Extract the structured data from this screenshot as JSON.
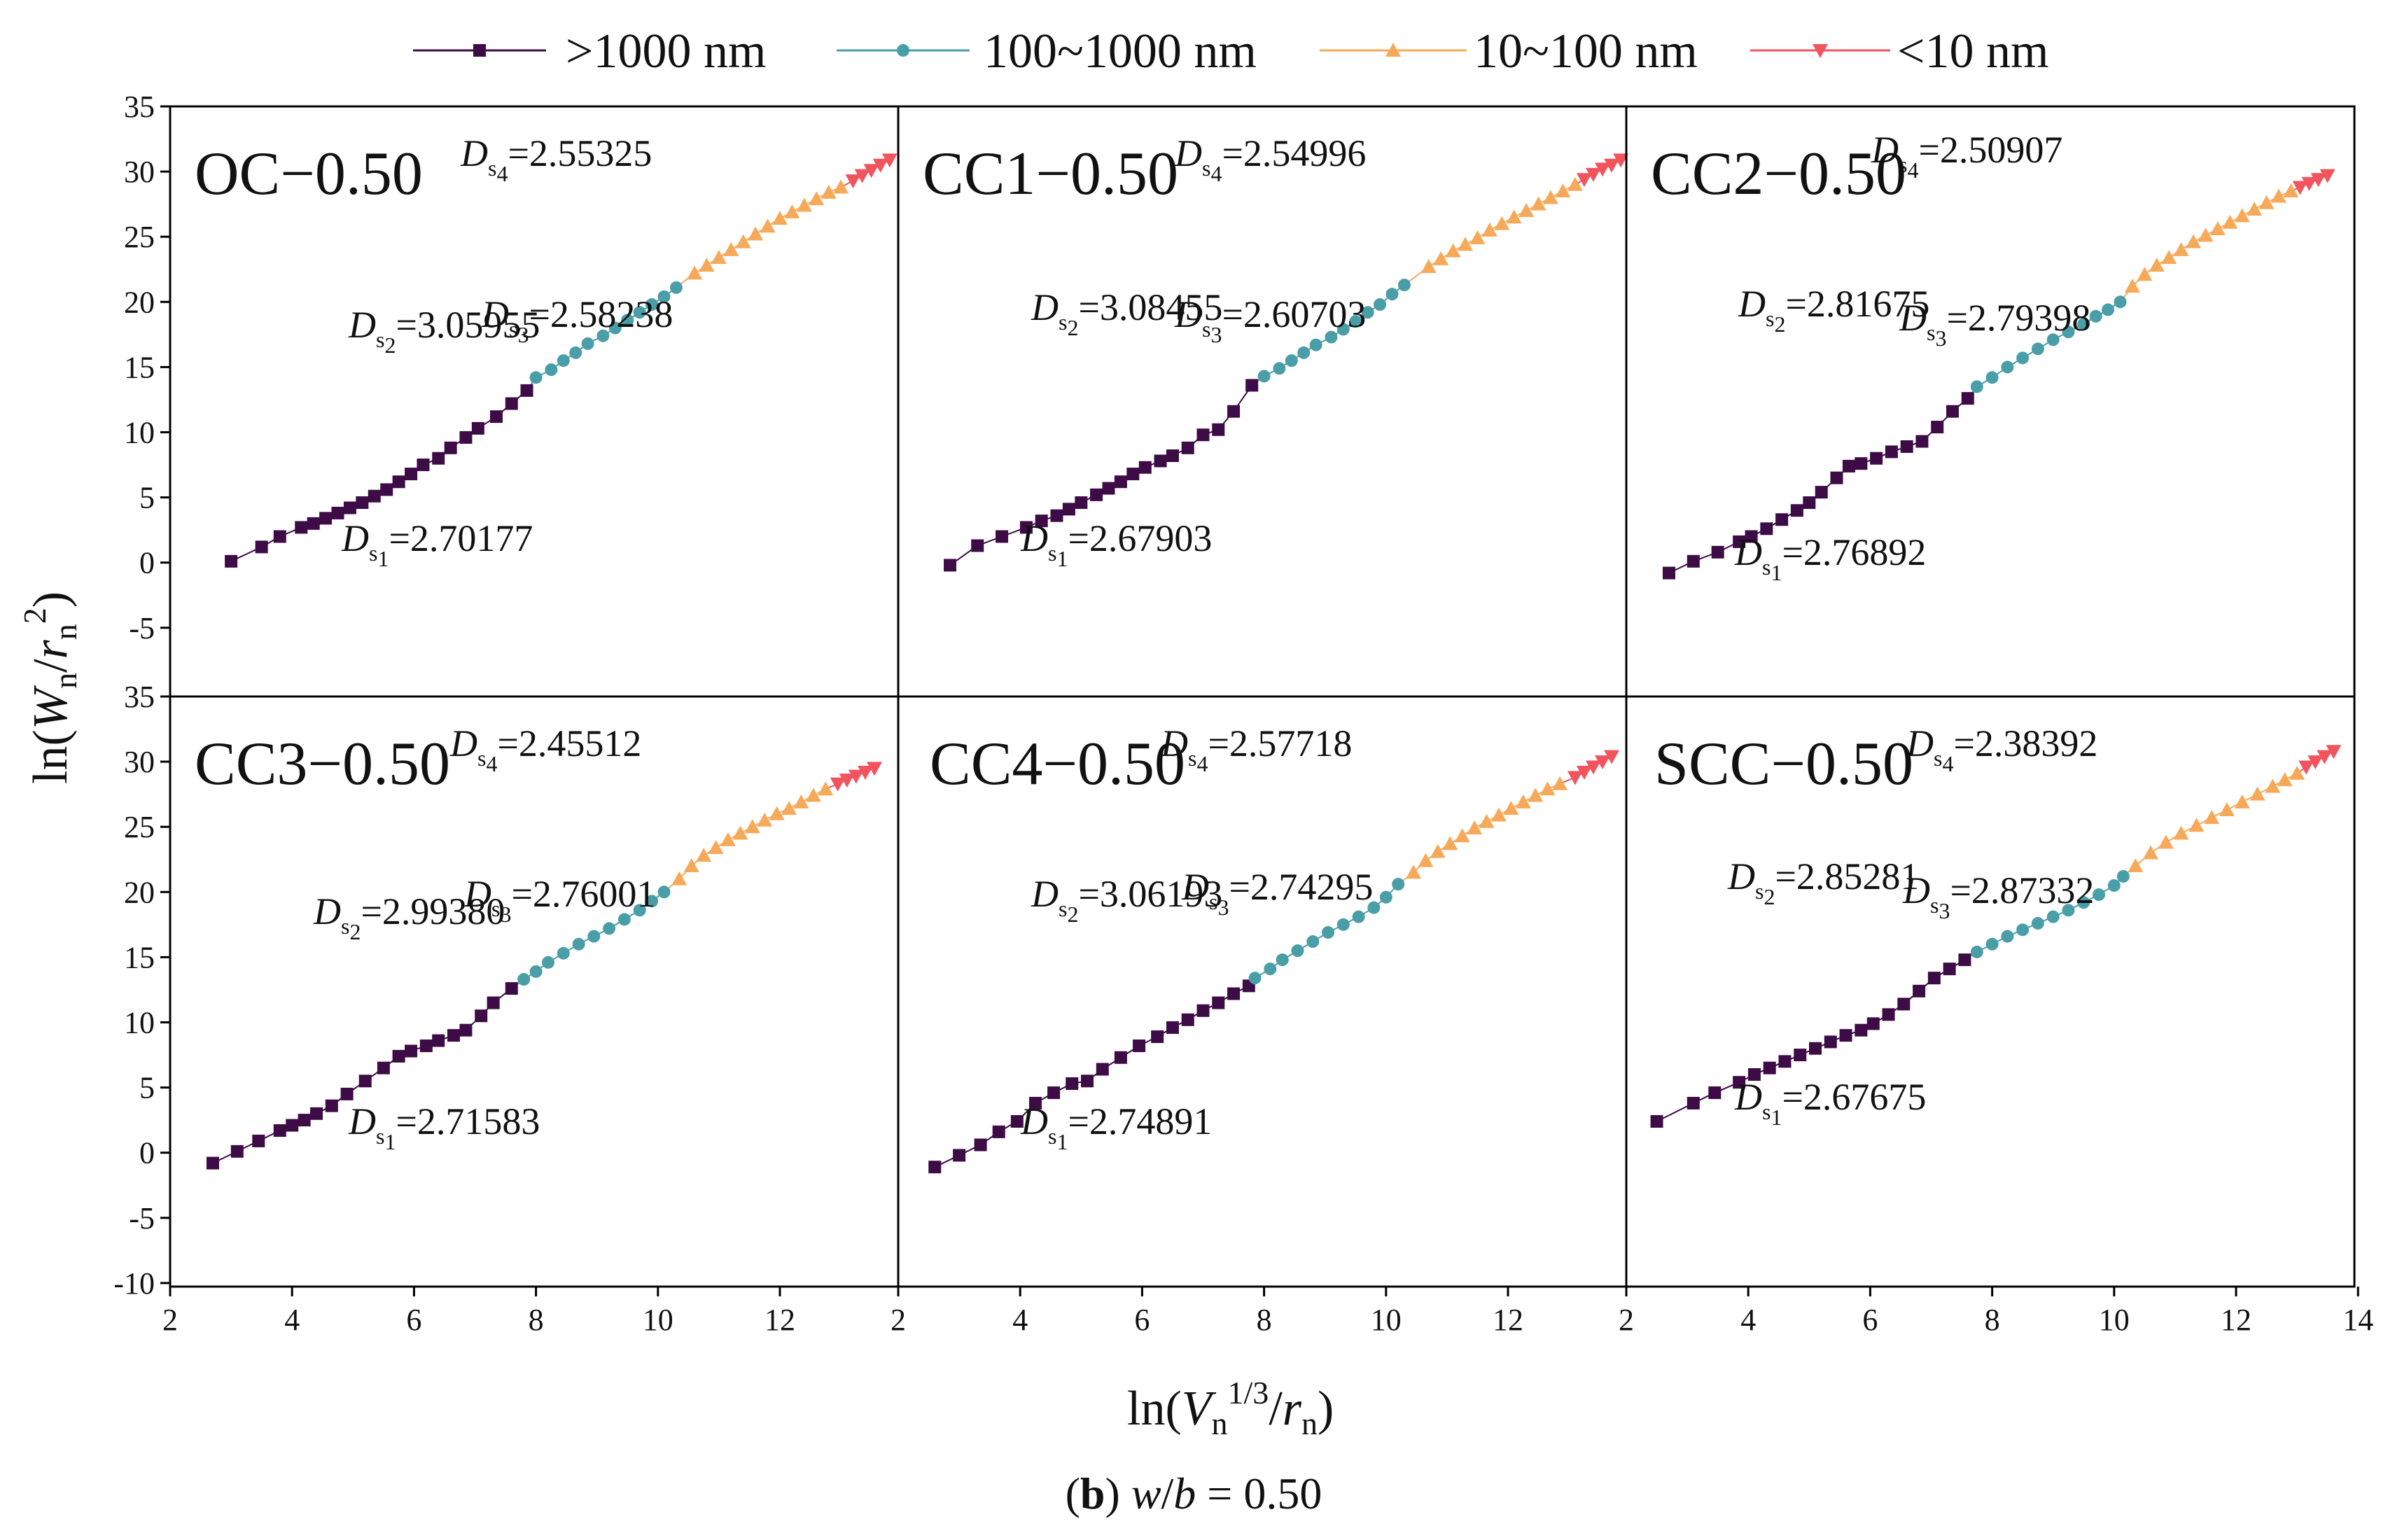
{
  "chart_data": {
    "type": "scatter",
    "figure_caption": {
      "letter": "b",
      "prefix": "(",
      "suffix": ")",
      "condition": "w/b = 0.50"
    },
    "xlabel": "ln(Vn^(1/3)/rn)",
    "ylabel": "ln(Wn/rn^2)",
    "x_ticks": [
      "2",
      "4",
      "6",
      "8",
      "10",
      "12",
      "2",
      "4",
      "6",
      "8",
      "10",
      "12",
      "2",
      "4",
      "6",
      "8",
      "10",
      "12",
      "14"
    ],
    "y_ticks_top": [
      "35",
      "30",
      "25",
      "20",
      "15",
      "10",
      "5",
      "0",
      "-5"
    ],
    "y_ticks_bottom": [
      "35",
      "30",
      "25",
      "20",
      "15",
      "10",
      "5",
      "0",
      "-5",
      "-10"
    ],
    "xlim": [
      2,
      14
    ],
    "ylim_top": [
      -10,
      35
    ],
    "ylim_bottom": [
      -10,
      35
    ],
    "legend": {
      "position": "top",
      "entries": [
        {
          "label": ">1000 nm",
          "color": "#3d0b45",
          "marker": "square"
        },
        {
          "label": "100~1000 nm",
          "color": "#4a9ea8",
          "marker": "circle"
        },
        {
          "label": "10~100 nm",
          "color": "#f7a95a",
          "marker": "triangle-up"
        },
        {
          "label": "<10 nm",
          "color": "#f2545e",
          "marker": "triangle-down"
        }
      ]
    },
    "panels": [
      {
        "title": "OC−0.50",
        "labels": [
          {
            "sub": "1",
            "value": "=2.70177"
          },
          {
            "sub": "2",
            "value": "=3.05955"
          },
          {
            "sub": "3",
            "value": "=2.58238"
          },
          {
            "sub": "4",
            "value": "=2.55325"
          }
        ],
        "segments": [
          {
            "name": ">1000 nm",
            "x": [
              3.0,
              3.5,
              3.8,
              4.15,
              4.35,
              4.55,
              4.75,
              4.95,
              5.15,
              5.35,
              5.55,
              5.75,
              5.95,
              6.15,
              6.4,
              6.6,
              6.85,
              7.05,
              7.35,
              7.6,
              7.85
            ],
            "y": [
              0.1,
              1.2,
              2.0,
              2.7,
              3.0,
              3.4,
              3.8,
              4.2,
              4.6,
              5.1,
              5.6,
              6.2,
              6.8,
              7.5,
              8.0,
              8.8,
              9.6,
              10.3,
              11.2,
              12.2,
              13.2
            ]
          },
          {
            "name": "100~1000 nm",
            "x": [
              8.0,
              8.25,
              8.45,
              8.65,
              8.85,
              9.1,
              9.3,
              9.5,
              9.7,
              9.9,
              10.1,
              10.3
            ],
            "y": [
              14.2,
              14.8,
              15.5,
              16.1,
              16.8,
              17.4,
              18.0,
              18.6,
              19.2,
              19.8,
              20.4,
              21.1
            ]
          },
          {
            "name": "10~100 nm",
            "x": [
              10.6,
              10.8,
              11.0,
              11.2,
              11.4,
              11.6,
              11.8,
              12.0,
              12.2,
              12.4,
              12.6,
              12.8,
              13.0
            ],
            "y": [
              22.2,
              22.8,
              23.4,
              24.0,
              24.6,
              25.2,
              25.8,
              26.4,
              26.9,
              27.4,
              27.9,
              28.4,
              28.8
            ]
          },
          {
            "name": "<10 nm",
            "x": [
              13.2,
              13.35,
              13.5,
              13.65,
              13.8
            ],
            "y": [
              29.3,
              29.7,
              30.1,
              30.5,
              30.9
            ]
          }
        ]
      },
      {
        "title": "CC1−0.50",
        "labels": [
          {
            "sub": "1",
            "value": "=2.67903"
          },
          {
            "sub": "2",
            "value": "=3.08455"
          },
          {
            "sub": "3",
            "value": "=2.60703"
          },
          {
            "sub": "4",
            "value": "=2.54996"
          }
        ],
        "segments": [
          {
            "name": ">1000 nm",
            "x": [
              2.85,
              3.3,
              3.7,
              4.1,
              4.35,
              4.6,
              4.8,
              5.0,
              5.25,
              5.45,
              5.65,
              5.85,
              6.05,
              6.3,
              6.5,
              6.75,
              7.0,
              7.25,
              7.5,
              7.8
            ],
            "y": [
              -0.2,
              1.3,
              2.0,
              2.7,
              3.2,
              3.6,
              4.1,
              4.6,
              5.2,
              5.7,
              6.2,
              6.8,
              7.3,
              7.8,
              8.2,
              8.8,
              9.8,
              10.2,
              11.6,
              13.6
            ]
          },
          {
            "name": "100~1000 nm",
            "x": [
              8.0,
              8.25,
              8.45,
              8.65,
              8.85,
              9.1,
              9.3,
              9.5,
              9.7,
              9.9,
              10.1,
              10.3
            ],
            "y": [
              14.3,
              14.9,
              15.5,
              16.1,
              16.7,
              17.3,
              17.9,
              18.5,
              19.2,
              19.8,
              20.6,
              21.3
            ]
          },
          {
            "name": "10~100 nm",
            "x": [
              10.7,
              10.9,
              11.1,
              11.3,
              11.5,
              11.7,
              11.9,
              12.1,
              12.3,
              12.5,
              12.7,
              12.9,
              13.1
            ],
            "y": [
              22.7,
              23.3,
              23.9,
              24.4,
              24.9,
              25.5,
              26.0,
              26.5,
              27.0,
              27.5,
              28.0,
              28.5,
              29.0
            ]
          },
          {
            "name": "<10 nm",
            "x": [
              13.25,
              13.4,
              13.55,
              13.7,
              13.85
            ],
            "y": [
              29.4,
              29.8,
              30.2,
              30.5,
              30.9
            ]
          }
        ]
      },
      {
        "title": "CC2−0.50",
        "labels": [
          {
            "sub": "1",
            "value": "=2.76892"
          },
          {
            "sub": "2",
            "value": "=2.81675"
          },
          {
            "sub": "3",
            "value": "=2.79398"
          },
          {
            "sub": "4",
            "value": "=2.50907"
          }
        ],
        "segments": [
          {
            "name": ">1000 nm",
            "x": [
              2.7,
              3.1,
              3.5,
              3.85,
              4.05,
              4.3,
              4.55,
              4.8,
              5.0,
              5.2,
              5.45,
              5.65,
              5.85,
              6.1,
              6.35,
              6.6,
              6.85,
              7.1,
              7.35,
              7.6
            ],
            "y": [
              -0.8,
              0.1,
              0.8,
              1.6,
              2.0,
              2.6,
              3.3,
              4.0,
              4.6,
              5.4,
              6.5,
              7.4,
              7.6,
              8.0,
              8.5,
              8.9,
              9.3,
              10.4,
              11.6,
              12.6
            ]
          },
          {
            "name": "100~1000 nm",
            "x": [
              7.75,
              8.0,
              8.25,
              8.5,
              8.75,
              9.0,
              9.25,
              9.5,
              9.7,
              9.9,
              10.1
            ],
            "y": [
              13.5,
              14.2,
              15.0,
              15.7,
              16.4,
              17.1,
              17.7,
              18.3,
              18.9,
              19.4,
              20.0
            ]
          },
          {
            "name": "10~100 nm",
            "x": [
              10.3,
              10.5,
              10.7,
              10.9,
              11.1,
              11.3,
              11.5,
              11.7,
              11.9,
              12.1,
              12.3,
              12.5,
              12.7,
              12.9
            ],
            "y": [
              21.2,
              22.1,
              22.8,
              23.4,
              24.0,
              24.6,
              25.1,
              25.6,
              26.1,
              26.6,
              27.1,
              27.6,
              28.1,
              28.5
            ]
          },
          {
            "name": "<10 nm",
            "x": [
              13.05,
              13.2,
              13.35,
              13.5
            ],
            "y": [
              28.8,
              29.1,
              29.4,
              29.7
            ]
          }
        ]
      },
      {
        "title": "CC3−0.50",
        "labels": [
          {
            "sub": "1",
            "value": "=2.71583"
          },
          {
            "sub": "2",
            "value": "=2.99380"
          },
          {
            "sub": "3",
            "value": "=2.76001"
          },
          {
            "sub": "4",
            "value": "=2.45512"
          }
        ],
        "segments": [
          {
            "name": ">1000 nm",
            "x": [
              2.7,
              3.1,
              3.45,
              3.8,
              4.0,
              4.2,
              4.4,
              4.65,
              4.9,
              5.2,
              5.5,
              5.75,
              5.95,
              6.2,
              6.4,
              6.65,
              6.85,
              7.1,
              7.3,
              7.6
            ],
            "y": [
              -0.8,
              0.1,
              0.9,
              1.7,
              2.1,
              2.5,
              3.0,
              3.6,
              4.5,
              5.5,
              6.5,
              7.4,
              7.8,
              8.2,
              8.6,
              9.0,
              9.4,
              10.5,
              11.5,
              12.6
            ]
          },
          {
            "name": "100~1000 nm",
            "x": [
              7.8,
              8.0,
              8.2,
              8.45,
              8.7,
              8.95,
              9.2,
              9.45,
              9.7,
              9.9,
              10.1
            ],
            "y": [
              13.3,
              13.9,
              14.6,
              15.3,
              16.0,
              16.6,
              17.2,
              17.9,
              18.6,
              19.3,
              20.0
            ]
          },
          {
            "name": "10~100 nm",
            "x": [
              10.35,
              10.55,
              10.75,
              10.95,
              11.15,
              11.35,
              11.55,
              11.75,
              11.95,
              12.15,
              12.35,
              12.55,
              12.75
            ],
            "y": [
              21.0,
              22.0,
              22.8,
              23.4,
              24.0,
              24.5,
              25.0,
              25.5,
              26.0,
              26.4,
              26.9,
              27.4,
              27.9
            ]
          },
          {
            "name": "<10 nm",
            "x": [
              12.95,
              13.1,
              13.25,
              13.4,
              13.55
            ],
            "y": [
              28.3,
              28.6,
              28.9,
              29.2,
              29.5
            ]
          }
        ]
      },
      {
        "title": "CC4−0.50",
        "labels": [
          {
            "sub": "1",
            "value": "=2.74891"
          },
          {
            "sub": "2",
            "value": "=3.06193"
          },
          {
            "sub": "3",
            "value": "=2.74295"
          },
          {
            "sub": "4",
            "value": "=2.57718"
          }
        ],
        "segments": [
          {
            "name": ">1000 nm",
            "x": [
              2.6,
              3.0,
              3.35,
              3.65,
              3.95,
              4.25,
              4.55,
              4.85,
              5.1,
              5.35,
              5.65,
              5.95,
              6.25,
              6.5,
              6.75,
              7.0,
              7.25,
              7.5,
              7.75
            ],
            "y": [
              -1.1,
              -0.2,
              0.6,
              1.6,
              2.4,
              3.8,
              4.6,
              5.3,
              5.5,
              6.4,
              7.3,
              8.2,
              8.9,
              9.6,
              10.2,
              10.9,
              11.5,
              12.2,
              12.8
            ]
          },
          {
            "name": "100~1000 nm",
            "x": [
              7.85,
              8.1,
              8.3,
              8.55,
              8.8,
              9.05,
              9.3,
              9.55,
              9.8,
              10.0,
              10.2
            ],
            "y": [
              13.4,
              14.1,
              14.8,
              15.5,
              16.2,
              16.9,
              17.5,
              18.1,
              18.8,
              19.6,
              20.6
            ]
          },
          {
            "name": "10~100 nm",
            "x": [
              10.45,
              10.65,
              10.85,
              11.05,
              11.25,
              11.45,
              11.65,
              11.85,
              12.05,
              12.25,
              12.45,
              12.65,
              12.85
            ],
            "y": [
              21.5,
              22.4,
              23.1,
              23.7,
              24.3,
              24.9,
              25.4,
              25.9,
              26.4,
              26.9,
              27.4,
              27.9,
              28.3
            ]
          },
          {
            "name": "<10 nm",
            "x": [
              13.1,
              13.25,
              13.4,
              13.55,
              13.7
            ],
            "y": [
              28.8,
              29.2,
              29.6,
              30.0,
              30.4
            ]
          }
        ]
      },
      {
        "title": "SCC−0.50",
        "labels": [
          {
            "sub": "1",
            "value": "=2.67675"
          },
          {
            "sub": "2",
            "value": "=2.85281"
          },
          {
            "sub": "3",
            "value": "=2.87332"
          },
          {
            "sub": "4",
            "value": "=2.38392"
          }
        ],
        "segments": [
          {
            "name": ">1000 nm",
            "x": [
              2.5,
              3.1,
              3.45,
              3.85,
              4.1,
              4.35,
              4.6,
              4.85,
              5.1,
              5.35,
              5.6,
              5.85,
              6.05,
              6.3,
              6.55,
              6.8,
              7.05,
              7.3,
              7.55
            ],
            "y": [
              2.4,
              3.8,
              4.6,
              5.4,
              6.0,
              6.5,
              7.0,
              7.5,
              8.0,
              8.5,
              9.0,
              9.4,
              9.9,
              10.6,
              11.4,
              12.4,
              13.4,
              14.1,
              14.8
            ]
          },
          {
            "name": "100~1000 nm",
            "x": [
              7.75,
              8.0,
              8.25,
              8.5,
              8.75,
              9.0,
              9.25,
              9.5,
              9.75,
              10.0,
              10.15
            ],
            "y": [
              15.4,
              16.0,
              16.6,
              17.1,
              17.6,
              18.1,
              18.6,
              19.2,
              19.8,
              20.5,
              21.2
            ]
          },
          {
            "name": "10~100 nm",
            "x": [
              10.35,
              10.6,
              10.85,
              11.1,
              11.35,
              11.6,
              11.85,
              12.1,
              12.35,
              12.6,
              12.8,
              13.0
            ],
            "y": [
              22.0,
              23.0,
              23.8,
              24.5,
              25.1,
              25.7,
              26.3,
              26.9,
              27.5,
              28.1,
              28.6,
              29.1
            ]
          },
          {
            "name": "<10 nm",
            "x": [
              13.15,
              13.3,
              13.45,
              13.6
            ],
            "y": [
              29.6,
              30.0,
              30.4,
              30.8
            ]
          }
        ]
      }
    ]
  }
}
